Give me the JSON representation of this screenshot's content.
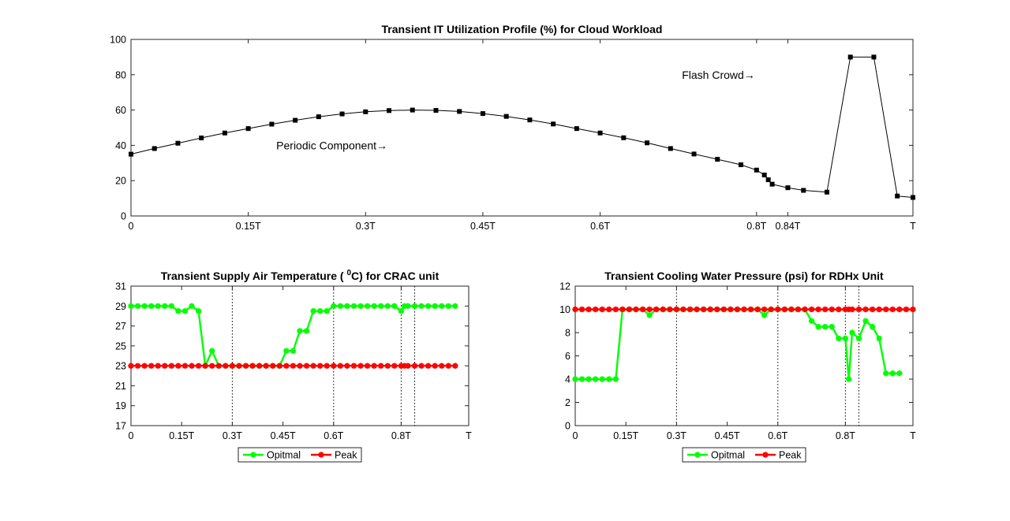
{
  "chart_data": [
    {
      "type": "line",
      "title": "Transient IT Utilization Profile (%) for Cloud Workload",
      "xlabel": "",
      "ylabel": "",
      "x_ticks": [
        "0",
        "0.15T",
        "0.3T",
        "0.45T",
        "0.6T",
        "0.8T",
        "0.84T",
        "T"
      ],
      "x_tick_values": [
        0,
        0.15,
        0.3,
        0.45,
        0.6,
        0.8,
        0.84,
        1
      ],
      "xlim": [
        0,
        1
      ],
      "ylim": [
        0,
        100
      ],
      "y_ticks": [
        0,
        20,
        40,
        60,
        80,
        100
      ],
      "grid": false,
      "series": [
        {
          "color": "#000000",
          "marker": "square",
          "x": [
            0,
            0.03,
            0.06,
            0.09,
            0.12,
            0.15,
            0.18,
            0.21,
            0.24,
            0.27,
            0.3,
            0.33,
            0.36,
            0.39,
            0.42,
            0.45,
            0.48,
            0.51,
            0.54,
            0.57,
            0.6,
            0.63,
            0.66,
            0.69,
            0.72,
            0.75,
            0.78,
            0.8,
            0.81,
            0.815,
            0.82,
            0.84,
            0.86,
            0.89,
            0.92,
            0.95,
            0.98,
            1.0
          ],
          "y": [
            35,
            38.2,
            41.2,
            44.2,
            47,
            49.5,
            52,
            54.2,
            56.2,
            57.8,
            59,
            59.7,
            60,
            59.8,
            59.2,
            58,
            56.4,
            54.4,
            52.1,
            49.5,
            47,
            44.3,
            41.4,
            38.2,
            35.1,
            32.1,
            29,
            26,
            23.2,
            20.5,
            18,
            16,
            14.5,
            13.5,
            90,
            90,
            11.3,
            10.5
          ]
        }
      ],
      "annotations": [
        {
          "text": "Flash Crowd→",
          "x": 0.8,
          "y": 80
        },
        {
          "text": "Periodic Component→",
          "x": 0.33,
          "y": 40
        }
      ]
    },
    {
      "type": "line",
      "title": "Transient Supply Air Temperature ( ",
      "title_superscript": "0",
      "title_suffix": "C) for CRAC unit",
      "xlabel": "",
      "ylabel": "",
      "x_ticks": [
        "0",
        "0.15T",
        "0.3T",
        "0.45T",
        "0.6T",
        "0.8T",
        "T"
      ],
      "x_tick_values": [
        0,
        0.15,
        0.3,
        0.45,
        0.6,
        0.8,
        1
      ],
      "xlim": [
        0,
        1
      ],
      "ylim": [
        17,
        31
      ],
      "y_ticks": [
        17,
        19,
        21,
        23,
        25,
        27,
        29,
        31
      ],
      "vlines": [
        0.3,
        0.6,
        0.8,
        0.84
      ],
      "legend": {
        "placement": "bottom-center"
      },
      "series": [
        {
          "name": "Opitmal",
          "color": "#00ff00",
          "x": [
            0,
            0.02,
            0.04,
            0.06,
            0.08,
            0.1,
            0.12,
            0.14,
            0.16,
            0.18,
            0.2,
            0.22,
            0.24,
            0.26,
            0.28,
            0.3,
            0.32,
            0.34,
            0.36,
            0.38,
            0.4,
            0.42,
            0.44,
            0.46,
            0.48,
            0.5,
            0.52,
            0.54,
            0.56,
            0.58,
            0.6,
            0.62,
            0.64,
            0.66,
            0.68,
            0.7,
            0.72,
            0.74,
            0.76,
            0.78,
            0.8,
            0.81,
            0.82,
            0.84,
            0.86,
            0.88,
            0.9,
            0.92,
            0.94,
            0.96
          ],
          "y": [
            29,
            29,
            29,
            29,
            29,
            29,
            29,
            28.5,
            28.5,
            29,
            28.5,
            23,
            24.5,
            23,
            23,
            23,
            23,
            23,
            23,
            23,
            23,
            23,
            23,
            24.5,
            24.5,
            26.5,
            26.5,
            28.5,
            28.5,
            28.5,
            29,
            29,
            29,
            29,
            29,
            29,
            29,
            29,
            29,
            29,
            28.5,
            29,
            29,
            29,
            29,
            29,
            29,
            29,
            29,
            29
          ]
        },
        {
          "name": "Peak",
          "color": "#ff0000",
          "x": [
            0,
            0.02,
            0.04,
            0.06,
            0.08,
            0.1,
            0.12,
            0.14,
            0.16,
            0.18,
            0.2,
            0.22,
            0.24,
            0.26,
            0.28,
            0.3,
            0.32,
            0.34,
            0.36,
            0.38,
            0.4,
            0.42,
            0.44,
            0.46,
            0.48,
            0.5,
            0.52,
            0.54,
            0.56,
            0.58,
            0.6,
            0.62,
            0.64,
            0.66,
            0.68,
            0.7,
            0.72,
            0.74,
            0.76,
            0.78,
            0.8,
            0.81,
            0.82,
            0.84,
            0.86,
            0.88,
            0.9,
            0.92,
            0.94,
            0.96
          ],
          "y": [
            23,
            23,
            23,
            23,
            23,
            23,
            23,
            23,
            23,
            23,
            23,
            23,
            23,
            23,
            23,
            23,
            23,
            23,
            23,
            23,
            23,
            23,
            23,
            23,
            23,
            23,
            23,
            23,
            23,
            23,
            23,
            23,
            23,
            23,
            23,
            23,
            23,
            23,
            23,
            23,
            23,
            23,
            23,
            23,
            23,
            23,
            23,
            23,
            23,
            23
          ]
        }
      ]
    },
    {
      "type": "line",
      "title": "Transient Cooling Water Pressure (psi) for RDHx Unit",
      "xlabel": "",
      "ylabel": "",
      "x_ticks": [
        "0",
        "0.15T",
        "0.3T",
        "0.45T",
        "0.6T",
        "0.8T",
        "T"
      ],
      "x_tick_values": [
        0,
        0.15,
        0.3,
        0.45,
        0.6,
        0.8,
        1
      ],
      "xlim": [
        0,
        1
      ],
      "ylim": [
        0,
        12
      ],
      "y_ticks": [
        0,
        2,
        4,
        6,
        8,
        10,
        12
      ],
      "vlines": [
        0.3,
        0.6,
        0.8,
        0.84
      ],
      "legend": {
        "placement": "bottom-center"
      },
      "series": [
        {
          "name": "Opitmal",
          "color": "#00ff00",
          "x": [
            0,
            0.02,
            0.04,
            0.06,
            0.08,
            0.1,
            0.12,
            0.14,
            0.16,
            0.18,
            0.2,
            0.22,
            0.24,
            0.26,
            0.28,
            0.3,
            0.32,
            0.34,
            0.36,
            0.38,
            0.4,
            0.42,
            0.44,
            0.46,
            0.48,
            0.5,
            0.52,
            0.54,
            0.56,
            0.58,
            0.6,
            0.62,
            0.64,
            0.66,
            0.68,
            0.7,
            0.72,
            0.74,
            0.76,
            0.78,
            0.8,
            0.81,
            0.82,
            0.84,
            0.86,
            0.88,
            0.9,
            0.92,
            0.94,
            0.96
          ],
          "y": [
            4,
            4,
            4,
            4,
            4,
            4,
            4,
            10,
            10,
            10,
            10,
            9.5,
            10,
            10,
            10,
            10,
            10,
            10,
            10,
            10,
            10,
            10,
            10,
            10,
            10,
            10,
            10,
            10,
            9.5,
            10,
            10,
            10,
            10,
            10,
            10,
            9,
            8.5,
            8.5,
            8.5,
            7.5,
            7.5,
            4,
            8,
            7.5,
            9,
            8.5,
            7.5,
            4.5,
            4.5,
            4.5
          ]
        },
        {
          "name": "Peak",
          "color": "#ff0000",
          "x": [
            0,
            0.02,
            0.04,
            0.06,
            0.08,
            0.1,
            0.12,
            0.14,
            0.16,
            0.18,
            0.2,
            0.22,
            0.24,
            0.26,
            0.28,
            0.3,
            0.32,
            0.34,
            0.36,
            0.38,
            0.4,
            0.42,
            0.44,
            0.46,
            0.48,
            0.5,
            0.52,
            0.54,
            0.56,
            0.58,
            0.6,
            0.62,
            0.64,
            0.66,
            0.68,
            0.7,
            0.72,
            0.74,
            0.76,
            0.78,
            0.8,
            0.81,
            0.82,
            0.84,
            0.86,
            0.88,
            0.9,
            0.92,
            0.94,
            0.96,
            0.98,
            1.0
          ],
          "y": [
            10,
            10,
            10,
            10,
            10,
            10,
            10,
            10,
            10,
            10,
            10,
            10,
            10,
            10,
            10,
            10,
            10,
            10,
            10,
            10,
            10,
            10,
            10,
            10,
            10,
            10,
            10,
            10,
            10,
            10,
            10,
            10,
            10,
            10,
            10,
            10,
            10,
            10,
            10,
            10,
            10,
            10,
            10,
            10,
            10,
            10,
            10,
            10,
            10,
            10,
            10,
            10
          ]
        }
      ]
    }
  ]
}
